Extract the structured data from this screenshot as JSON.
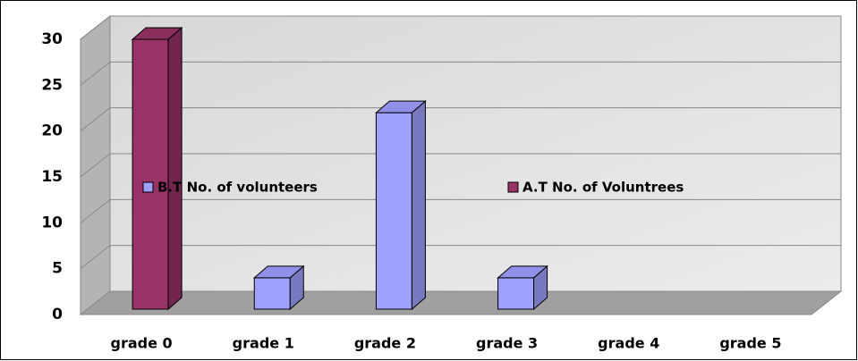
{
  "chart_data": {
    "type": "bar3d",
    "categories": [
      "grade 0",
      "grade 1",
      "grade 2",
      "grade 3",
      "grade 4",
      "grade 5"
    ],
    "series": [
      {
        "name": "B.T No. of volunteers",
        "color": "#a0a0ff",
        "values": [
          null,
          4,
          22,
          4,
          null,
          null
        ]
      },
      {
        "name": "A.T No. of Voluntrees",
        "color": "#993366",
        "values": [
          30,
          null,
          null,
          null,
          null,
          null
        ]
      }
    ],
    "ylim": [
      0,
      30
    ],
    "yticks": [
      0,
      5,
      10,
      15,
      20,
      25,
      30
    ],
    "grid": true,
    "legend": "center"
  }
}
